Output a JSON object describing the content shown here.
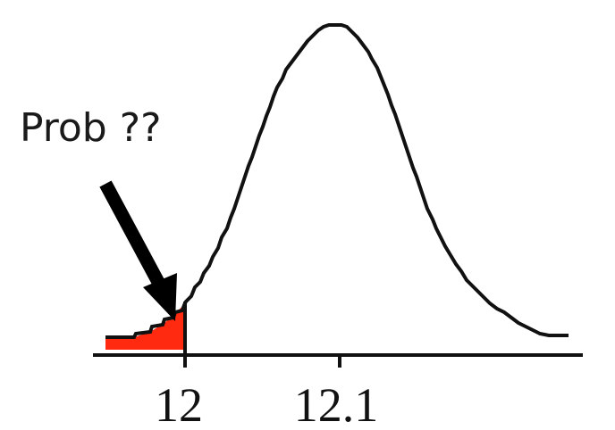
{
  "diagram": {
    "annotation": "Prob ??",
    "tick_labels": [
      "12",
      "12.1"
    ],
    "colors": {
      "curve": "#111111",
      "shaded_area": "#ff2a10",
      "axis": "#111111",
      "arrow": "#000000"
    }
  }
}
